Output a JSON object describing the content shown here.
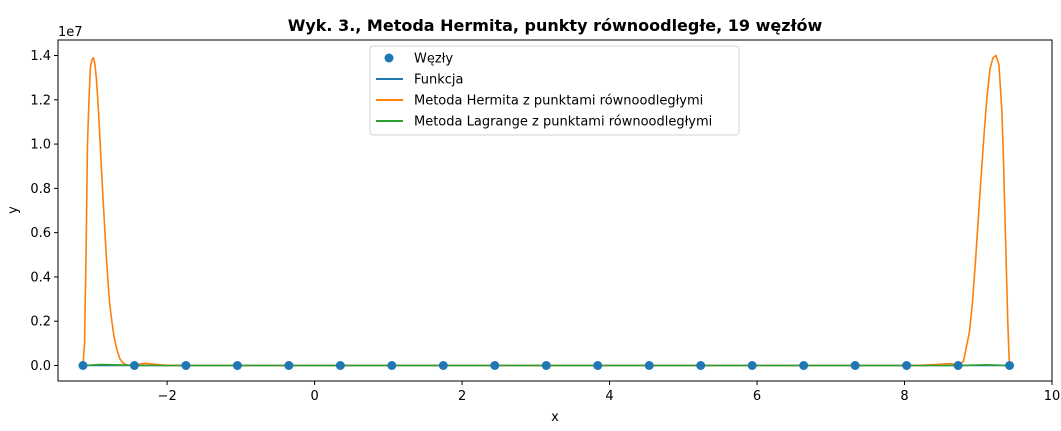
{
  "chart_data": {
    "type": "line",
    "title": "Wyk. 3., Metoda Hermita, punkty równoodległe, 19 węzłów",
    "xlabel": "x",
    "ylabel": "y",
    "y_scale_label": "1e7",
    "xlim": [
      -3.48,
      10.0
    ],
    "ylim": [
      -0.07,
      1.47
    ],
    "x_ticks": [
      -2,
      0,
      2,
      4,
      6,
      8,
      10
    ],
    "x_tick_labels": [
      "−2",
      "0",
      "2",
      "4",
      "6",
      "8",
      "10"
    ],
    "y_ticks": [
      0.0,
      0.2,
      0.4,
      0.6,
      0.8,
      1.0,
      1.2,
      1.4
    ],
    "y_tick_labels": [
      "0.0",
      "0.2",
      "0.4",
      "0.6",
      "0.8",
      "1.0",
      "1.2",
      "1.4"
    ],
    "grid": false,
    "legend_position": "top-center",
    "nodes": {
      "name": "Węzły",
      "color": "#1f77b4",
      "x": [
        -3.1416,
        -2.4435,
        -1.7453,
        -1.0472,
        -0.3491,
        0.3491,
        1.0472,
        1.7453,
        2.4435,
        3.1416,
        3.8397,
        4.5379,
        5.236,
        5.9341,
        6.6323,
        7.3304,
        8.0285,
        8.7266,
        9.4248
      ],
      "y": [
        0,
        0,
        0,
        0,
        0,
        0,
        0,
        0,
        0,
        0,
        0,
        0,
        0,
        0,
        0,
        0,
        0,
        0,
        0
      ]
    },
    "series": [
      {
        "name": "Funkcja",
        "color": "#1f77b4",
        "x": [
          -3.1416,
          0,
          3.1416,
          6.2832,
          9.4248
        ],
        "y": [
          0,
          0,
          0,
          0,
          0
        ]
      },
      {
        "name": "Metoda Hermita z punktami równoodległymi",
        "color": "#ff7f0e",
        "x": [
          -3.1416,
          -3.12,
          -3.1,
          -3.08,
          -3.06,
          -3.04,
          -3.02,
          -3.0,
          -2.98,
          -2.96,
          -2.94,
          -2.92,
          -2.9,
          -2.88,
          -2.86,
          -2.84,
          -2.82,
          -2.8,
          -2.78,
          -2.75,
          -2.72,
          -2.68,
          -2.64,
          -2.6,
          -2.56,
          -2.52,
          -2.4435,
          -2.38,
          -2.3,
          -2.2,
          -2.1,
          -2.0,
          -1.7453,
          8.0285,
          8.22,
          8.42,
          8.62,
          8.67,
          8.7266,
          8.8,
          8.88,
          8.92,
          8.96,
          9.0,
          9.04,
          9.08,
          9.12,
          9.16,
          9.2,
          9.24,
          9.28,
          9.32,
          9.34,
          9.36,
          9.38,
          9.4,
          9.42,
          9.4248
        ],
        "y": [
          0,
          0.1,
          0.5,
          1.0,
          1.2,
          1.35,
          1.38,
          1.39,
          1.36,
          1.3,
          1.2,
          1.08,
          0.95,
          0.82,
          0.7,
          0.58,
          0.47,
          0.37,
          0.28,
          0.2,
          0.13,
          0.07,
          0.03,
          0.012,
          0.004,
          0.001,
          0.0,
          0.006,
          0.01,
          0.007,
          0.003,
          0.001,
          0.0,
          0.0,
          0.001,
          0.004,
          0.009,
          0.006,
          0.0,
          0.02,
          0.15,
          0.28,
          0.46,
          0.66,
          0.86,
          1.05,
          1.22,
          1.34,
          1.39,
          1.4,
          1.36,
          1.15,
          0.95,
          0.7,
          0.45,
          0.2,
          0.02,
          0
        ]
      },
      {
        "name": "Metoda Lagrange z punktami równoodległymi",
        "color": "#2ca02c",
        "x": [
          -3.1416,
          -2.9,
          -2.6,
          -2.3,
          0,
          4,
          8,
          8.75,
          9.1,
          9.4248
        ],
        "y": [
          0,
          0.004,
          0.002,
          0.0,
          0,
          0,
          0,
          0.0,
          0.003,
          0
        ]
      }
    ]
  }
}
